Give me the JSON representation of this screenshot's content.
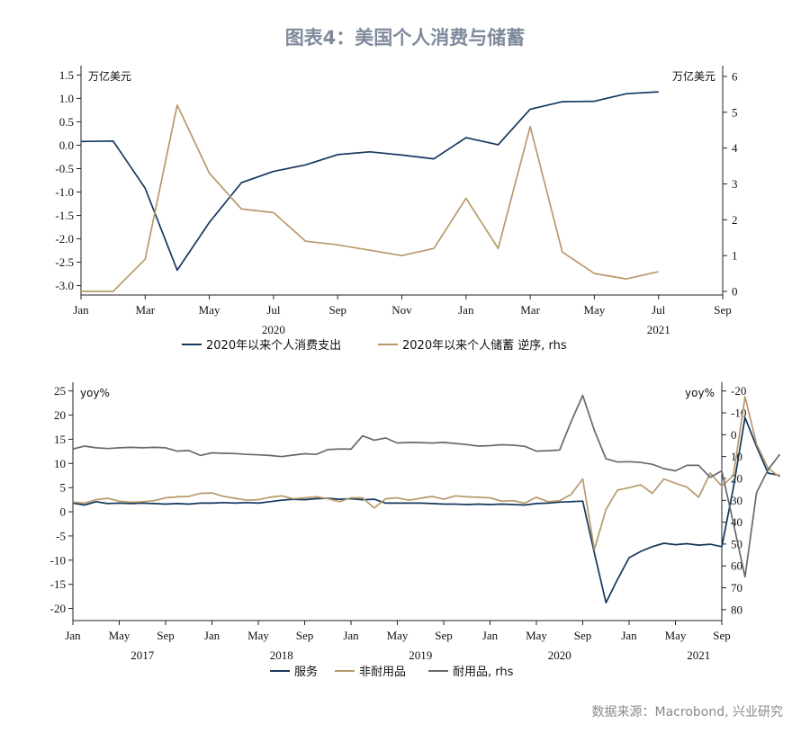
{
  "title": "图表4：美国个人消费与储蓄",
  "source": "数据来源：Macrobond, 兴业研究",
  "colors": {
    "navy": "#14375e",
    "gold": "#b8996a",
    "gray": "#666a70",
    "axis": "#222222"
  },
  "chart_data": [
    {
      "type": "line",
      "x_tick_labels": [
        "Jan",
        "Mar",
        "May",
        "Jul",
        "Sep",
        "Nov",
        "Jan",
        "Mar",
        "May",
        "Jul",
        "Sep"
      ],
      "x_year_labels": [
        "2020",
        "2021"
      ],
      "y_left_unit": "万亿美元",
      "y_right_unit": "万亿美元",
      "y_left_ticks": [
        "1.5",
        "1.0",
        "0.5",
        "0.0",
        "-0.5",
        "-1.0",
        "-1.5",
        "-2.0",
        "-2.5",
        "-3.0"
      ],
      "y_right_ticks": [
        "0",
        "1",
        "2",
        "3",
        "4",
        "5",
        "6"
      ],
      "ylim_left": [
        -3.2,
        1.7
      ],
      "ylim_right": [
        6.3,
        -0.1
      ],
      "xlim": [
        "2020-01",
        "2021-09"
      ],
      "series": [
        {
          "name": "2020年以来个人消费支出",
          "axis": "left",
          "color": "navy",
          "x": [
            "2020-01",
            "2020-02",
            "2020-03",
            "2020-04",
            "2020-05",
            "2020-06",
            "2020-07",
            "2020-08",
            "2020-09",
            "2020-10",
            "2020-11",
            "2020-12",
            "2021-01",
            "2021-02",
            "2021-03",
            "2021-04",
            "2021-05",
            "2021-06",
            "2021-07"
          ],
          "values": [
            0.08,
            0.09,
            -0.92,
            -2.67,
            -1.65,
            -0.8,
            -0.56,
            -0.42,
            -0.2,
            -0.14,
            -0.21,
            -0.29,
            0.16,
            0.01,
            0.77,
            0.93,
            0.94,
            1.1,
            1.14
          ]
        },
        {
          "name": "2020年以来个人储蓄 逆序, rhs",
          "axis": "right",
          "color": "gold",
          "x": [
            "2020-01",
            "2020-02",
            "2020-03",
            "2020-04",
            "2020-05",
            "2020-06",
            "2020-07",
            "2020-08",
            "2020-09",
            "2020-10",
            "2020-11",
            "2020-12",
            "2021-01",
            "2021-02",
            "2021-03",
            "2021-04",
            "2021-05",
            "2021-06",
            "2021-07"
          ],
          "values": [
            0.0,
            0.0,
            0.9,
            5.2,
            3.3,
            2.3,
            2.2,
            1.4,
            1.3,
            1.15,
            1.0,
            1.2,
            2.6,
            1.2,
            4.6,
            1.1,
            0.5,
            0.35,
            0.55
          ]
        }
      ]
    },
    {
      "type": "line",
      "x_tick_labels": [
        "Jan",
        "May",
        "Sep",
        "Jan",
        "May",
        "Sep",
        "Jan",
        "May",
        "Sep",
        "Jan",
        "May",
        "Sep",
        "Jan",
        "May",
        "Sep"
      ],
      "x_year_labels": [
        "2017",
        "2018",
        "2019",
        "2020",
        "2021"
      ],
      "y_left_unit": "yoy%",
      "y_right_unit": "yoy%",
      "y_left_ticks": [
        "25",
        "20",
        "15",
        "10",
        "5",
        "0",
        "-5",
        "-10",
        "-15",
        "-20"
      ],
      "y_right_ticks": [
        "80",
        "70",
        "60",
        "50",
        "40",
        "30",
        "20",
        "10",
        "0",
        "-10",
        "-20"
      ],
      "ylim_left": [
        -22.5,
        26.8
      ],
      "ylim_right": [
        -24,
        85
      ],
      "xlim": [
        "2017-01",
        "2021-09"
      ],
      "series": [
        {
          "name": "服务",
          "axis": "left",
          "color": "navy",
          "start": "2017-01",
          "values": [
            1.8,
            1.4,
            2.1,
            1.7,
            1.8,
            1.7,
            1.8,
            1.7,
            1.6,
            1.7,
            1.6,
            1.8,
            1.8,
            1.9,
            1.8,
            1.9,
            1.8,
            2.1,
            2.4,
            2.6,
            2.5,
            2.7,
            2.8,
            2.6,
            2.7,
            2.5,
            2.6,
            1.8,
            1.8,
            1.8,
            1.8,
            1.7,
            1.6,
            1.6,
            1.5,
            1.6,
            1.5,
            1.6,
            1.5,
            1.4,
            1.7,
            1.8,
            2.0,
            2.1,
            2.2,
            -8.5,
            -18.8,
            -14.0,
            -9.5,
            -8.2,
            -7.2,
            -6.5,
            -6.8,
            -6.6,
            -6.9,
            -6.7,
            -7.2,
            5.0,
            19.5,
            13.5,
            8.0,
            7.5
          ]
        },
        {
          "name": "非耐用品",
          "axis": "left",
          "color": "gold",
          "start": "2017-01",
          "values": [
            2.0,
            1.8,
            2.5,
            2.8,
            2.2,
            2.0,
            2.1,
            2.3,
            2.9,
            3.1,
            3.2,
            3.8,
            3.9,
            3.2,
            2.8,
            2.4,
            2.5,
            3.0,
            3.3,
            2.7,
            2.9,
            3.1,
            2.7,
            2.1,
            2.9,
            2.9,
            0.8,
            2.7,
            2.9,
            2.4,
            2.8,
            3.2,
            2.6,
            3.3,
            3.1,
            3.0,
            2.9,
            2.2,
            2.3,
            1.8,
            3.0,
            2.1,
            2.3,
            3.6,
            6.8,
            -7.8,
            0.5,
            4.5,
            5.0,
            5.6,
            3.8,
            6.8,
            5.9,
            5.1,
            3.0,
            8.0,
            5.3,
            7.5,
            23.8,
            14.0,
            9.0,
            7.2
          ]
        },
        {
          "name": "耐用品, rhs",
          "axis": "right",
          "color": "gray",
          "start": "2017-01",
          "values": [
            6.5,
            5.2,
            6.0,
            6.3,
            6.0,
            5.8,
            6.0,
            5.8,
            6.0,
            7.5,
            7.2,
            9.5,
            8.3,
            8.5,
            8.6,
            9.0,
            9.2,
            9.5,
            10.0,
            9.3,
            8.7,
            9.0,
            6.8,
            6.5,
            6.6,
            0.5,
            2.5,
            1.5,
            3.8,
            3.5,
            3.6,
            3.8,
            3.5,
            4.0,
            4.5,
            5.2,
            5.0,
            4.6,
            4.8,
            5.3,
            7.5,
            7.3,
            7.0,
            -6.0,
            -18.0,
            -2.0,
            11.0,
            12.5,
            12.3,
            12.7,
            13.5,
            15.5,
            16.5,
            14.0,
            14.0,
            19.5,
            16.5,
            40.5,
            65.0,
            26.5,
            16.0,
            9.0
          ]
        }
      ]
    }
  ],
  "legend1": {
    "s1": "2020年以来个人消费支出",
    "s2": "2020年以来个人储蓄 逆序, rhs"
  },
  "legend2": {
    "s1": "服务",
    "s2": "非耐用品",
    "s3": "耐用品, rhs"
  }
}
